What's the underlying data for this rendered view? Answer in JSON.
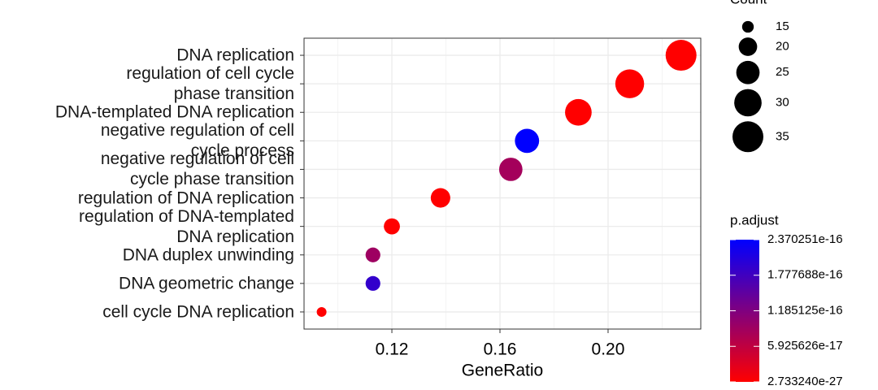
{
  "chart_data": {
    "type": "dot",
    "categories": [
      "DNA replication",
      "regulation of cell cycle\nphase transition",
      "DNA-templated DNA replication",
      "negative regulation of cell\ncycle process",
      "negative regulation of cell\ncycle phase transition",
      "regulation of DNA replication",
      "regulation of DNA-templated\nDNA replication",
      "DNA duplex unwinding",
      "DNA geometric change",
      "cell cycle DNA replication"
    ],
    "gene_ratio": [
      0.227,
      0.208,
      0.189,
      0.17,
      0.164,
      0.138,
      0.12,
      0.113,
      0.113,
      0.094
    ],
    "count": [
      35,
      32,
      29,
      26,
      25,
      21,
      18,
      17,
      17,
      14
    ],
    "p_adjust": [
      1e-22,
      2e-21,
      5e-22,
      2.370251e-16,
      8.5e-17,
      3e-21,
      6e-21,
      9e-17,
      1.9e-16,
      2.73324e-27
    ],
    "x_label": "GeneRatio",
    "xlim": [
      0.0875,
      0.2343
    ],
    "xticks": [
      {
        "value": 0.12,
        "label": "0.12"
      },
      {
        "value": 0.16,
        "label": "0.16"
      },
      {
        "value": 0.2,
        "label": "0.20"
      }
    ],
    "grid": true,
    "size_legend": {
      "title": "Count",
      "ticks": [
        15,
        20,
        25,
        30,
        35
      ]
    },
    "color_legend": {
      "title": "p.adjust",
      "color_low": "#ff0000",
      "color_high": "#0000ff",
      "lim": [
        2.73324e-27,
        2.370251e-16
      ],
      "ticks": [
        2.370251e-16,
        1.777688e-16,
        1.185125e-16,
        5.925626e-17,
        {
          "value": 2.73324e-27,
          "label": "2.733240e-27"
        }
      ]
    }
  }
}
